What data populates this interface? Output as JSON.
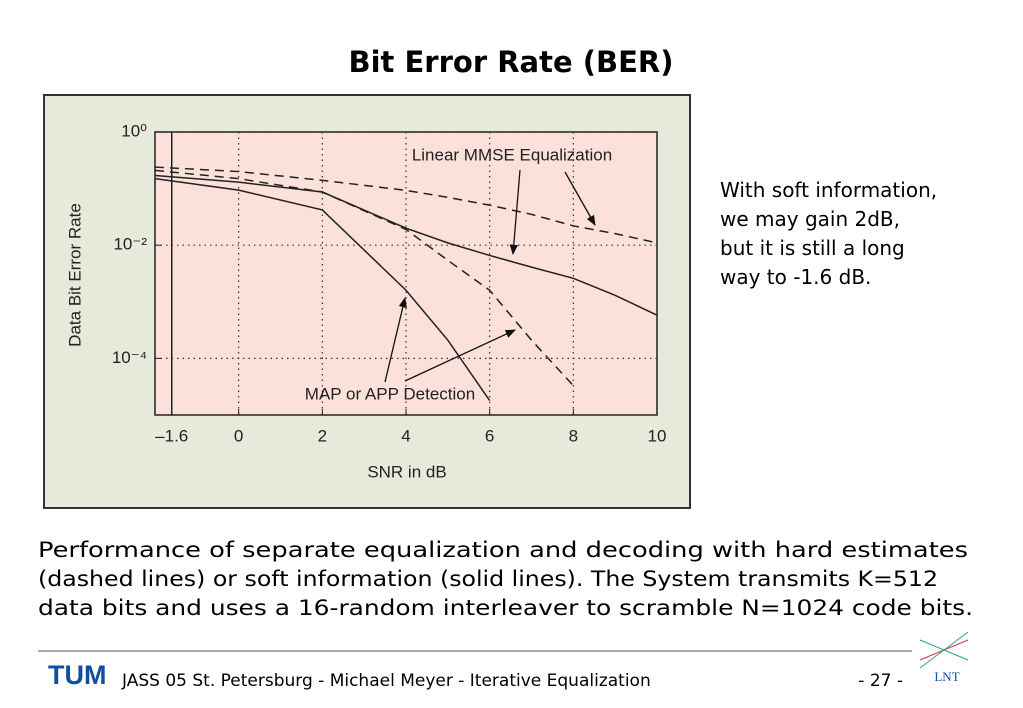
{
  "slide_title": "Bit Error Rate (BER)",
  "side_text": [
    "With soft information,",
    "we may gain 2dB,",
    "but it is still a long",
    "way to -1.6 dB."
  ],
  "caption": [
    "Performance of separate equalization and decoding with hard estimates",
    "(dashed lines) or soft information (solid lines). The System transmits K=512",
    "data bits and uses a 16-random interleaver to scramble N=1024 code bits."
  ],
  "footer": {
    "logo": "TUM",
    "text": "JASS 05 St. Petersburg  -  Michael Meyer  -  Iterative Equalization",
    "page": "- 27 -",
    "lnt": "LNT"
  },
  "chart_data": {
    "type": "line",
    "xlabel": "SNR in dB",
    "ylabel": "Data Bit Error Rate",
    "annotations": [
      "Linear MMSE Equalization",
      "MAP or APP Detection"
    ],
    "x": [
      -2,
      0,
      2,
      4,
      5,
      6,
      7,
      8,
      9,
      10
    ],
    "series": [
      {
        "color": "#222222",
        "dashed": true,
        "values": [
          0.24,
          0.2,
          0.14,
          0.093,
          0.07,
          0.051,
          0.035,
          0.022,
          0.016,
          0.011
        ]
      },
      {
        "color": "#222222",
        "dashed": true,
        "values": [
          0.21,
          0.15,
          0.087,
          0.019,
          0.0054,
          0.0016,
          0.00021,
          3.3e-05,
          null,
          null
        ]
      },
      {
        "color": "#222222",
        "dashed": false,
        "values": [
          0.17,
          0.13,
          0.087,
          0.02,
          0.011,
          0.0066,
          0.0041,
          0.0026,
          0.0013,
          0.00058
        ]
      },
      {
        "color": "#222222",
        "dashed": false,
        "values": [
          0.15,
          0.094,
          0.042,
          0.0016,
          0.00021,
          1.8e-05,
          null,
          null,
          null,
          null
        ]
      }
    ],
    "xlim": [
      -2,
      10
    ],
    "ylim": [
      1e-05,
      1
    ],
    "ylog": true,
    "xticks": [
      {
        "value": -1.6,
        "label": "–1.6"
      },
      0,
      2,
      4,
      6,
      8,
      10
    ],
    "yticks": [
      {
        "value": 1,
        "label": "10⁰"
      },
      {
        "value": 0.01,
        "label": "10⁻²"
      },
      {
        "value": 0.0001,
        "label": "10⁻⁴"
      }
    ],
    "grid": true
  }
}
